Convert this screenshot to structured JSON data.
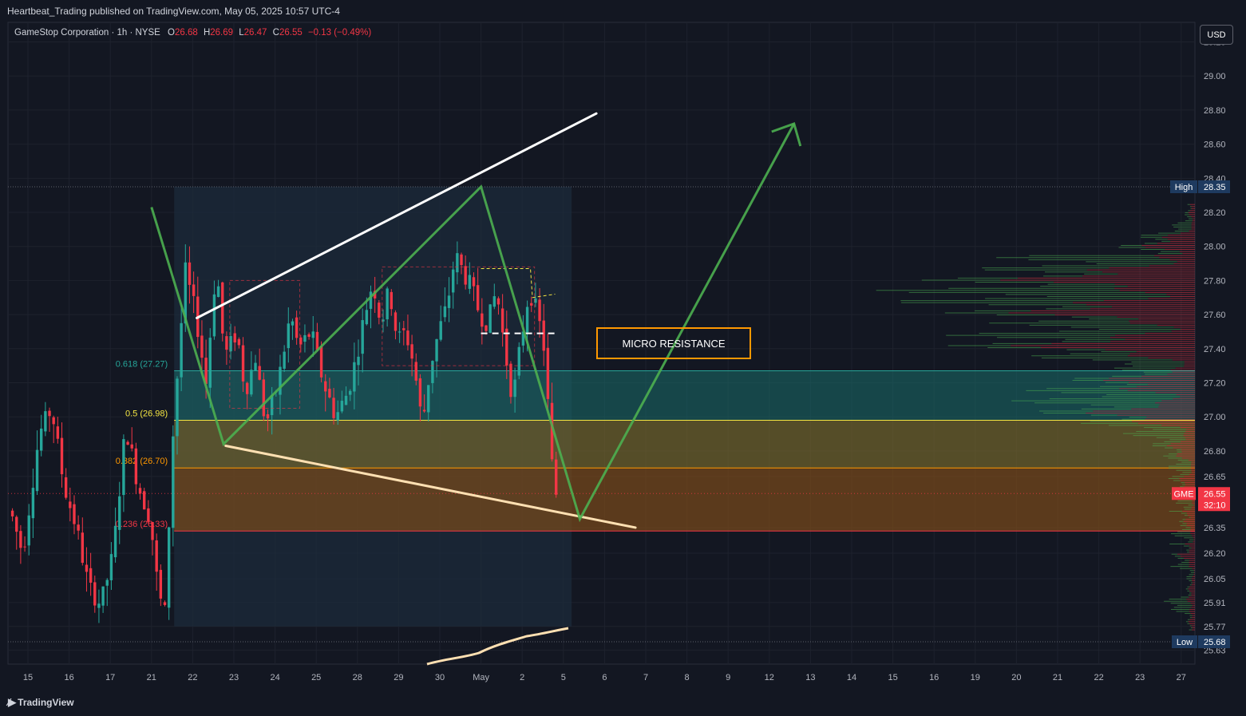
{
  "header": {
    "published_by": "Heartbeat_Trading published on TradingView.com, May 05, 2025 10:57 UTC-4"
  },
  "legend": {
    "symbol_desc": "GameStop Corporation · 1h · NYSE",
    "o_label": "O",
    "o": "26.68",
    "h_label": "H",
    "h": "26.69",
    "l_label": "L",
    "l": "26.47",
    "c_label": "C",
    "c": "26.55",
    "change": "−0.13 (−0.49%)"
  },
  "currency_button": "USD",
  "footer": {
    "brand": "TradingView"
  },
  "chart_data": {
    "type": "candlestick",
    "symbol": "GME",
    "interval": "1h",
    "ylim": [
      25.55,
      29.28
    ],
    "price_axis_ticks": [
      "29.20",
      "29.00",
      "28.80",
      "28.60",
      "28.40",
      "28.20",
      "28.00",
      "27.80",
      "27.60",
      "27.40",
      "27.20",
      "27.00",
      "26.80",
      "26.65",
      "26.35",
      "26.20",
      "26.05",
      "25.91",
      "25.77",
      "25.63"
    ],
    "time_axis_ticks": [
      "15",
      "16",
      "17",
      "21",
      "22",
      "23",
      "24",
      "25",
      "28",
      "29",
      "30",
      "May",
      "2",
      "5",
      "6",
      "7",
      "8",
      "9",
      "12",
      "13",
      "14",
      "15",
      "16",
      "19",
      "20",
      "21",
      "22",
      "23",
      "27"
    ],
    "high": {
      "label": "High",
      "value": "28.35"
    },
    "low": {
      "label": "Low",
      "value": "25.68"
    },
    "last": {
      "symbol": "GME",
      "price": "26.55",
      "countdown": "32:10"
    },
    "fib_levels": [
      {
        "label": "0.618 (27.27)",
        "price": 27.27,
        "color": "#26a69a"
      },
      {
        "label": "0.5 (26.98)",
        "price": 26.98,
        "color": "#f5e642"
      },
      {
        "label": "0.382 (26.70)",
        "price": 26.7,
        "color": "#ff9800"
      },
      {
        "label": "0.236 (26.33)",
        "price": 26.33,
        "color": "#f23645"
      }
    ],
    "annotations": [
      {
        "text": "MICRO RESISTANCE",
        "color": "#ff9800"
      }
    ],
    "colors": {
      "up": "#26a69a",
      "down": "#f23645",
      "pattern": "#4caf50",
      "upper_trend": "#ffffff",
      "lower_trend": "#ffe0b2"
    },
    "zigzag": [
      {
        "time": 23.0,
        "price": 28.23
      },
      {
        "time": 24.75,
        "price": 26.84
      },
      {
        "time": 31.0,
        "price": 28.35
      },
      {
        "time": 33.4,
        "price": 26.4
      },
      {
        "time": 38.6,
        "price": 28.72
      }
    ],
    "trendlines": [
      {
        "name": "upper",
        "from": {
          "time": 24.1,
          "price": 27.58
        },
        "to": {
          "time": 33.8,
          "price": 28.78
        }
      },
      {
        "name": "lower",
        "from": {
          "time": 24.8,
          "price": 26.83
        },
        "to": {
          "time": 34.75,
          "price": 26.35
        }
      }
    ]
  }
}
